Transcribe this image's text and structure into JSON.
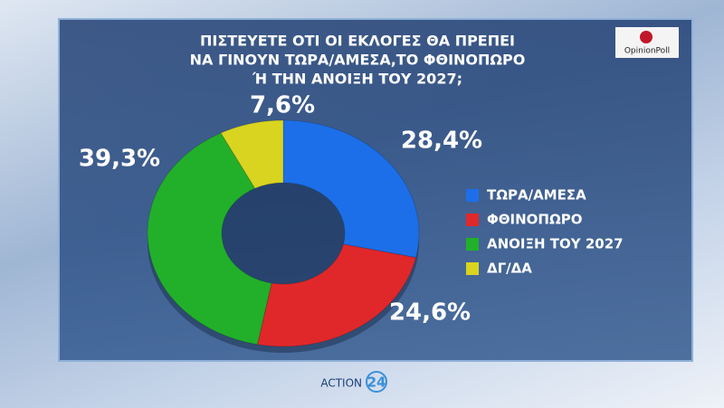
{
  "chart_data": {
    "type": "donut",
    "title": [
      "ΠΙΣΤΕΥΕΤΕ ΟΤΙ ΟΙ ΕΚΛΟΓΕΣ ΘΑ ΠΡΕΠΕΙ",
      "ΝΑ ΓΙΝΟΥΝ ΤΩΡΑ/ΑΜΕΣΑ,ΤΟ ΦΘΙΝΟΠΩΡΟ",
      "Ή ΤΗΝ ΑΝΟΙΞΗ ΤΟΥ 2027;"
    ],
    "categories": [
      "ΤΩΡΑ/ΑΜΕΣΑ",
      "ΦΘΙΝΟΠΩΡΟ",
      "ΑΝΟΙΞΗ ΤΟΥ 2027",
      "ΔΓ/ΔΑ"
    ],
    "values": [
      28.4,
      24.6,
      39.3,
      7.6
    ],
    "value_labels": [
      "28,4%",
      "24,6%",
      "39,3%",
      "7,6%"
    ],
    "colors": [
      "#1c6fe8",
      "#e0282a",
      "#22b02a",
      "#d9d420"
    ],
    "legend": "right"
  },
  "source_logo": "OpinionPoll",
  "channel_logo": {
    "text": "ACTION",
    "number": "24"
  }
}
